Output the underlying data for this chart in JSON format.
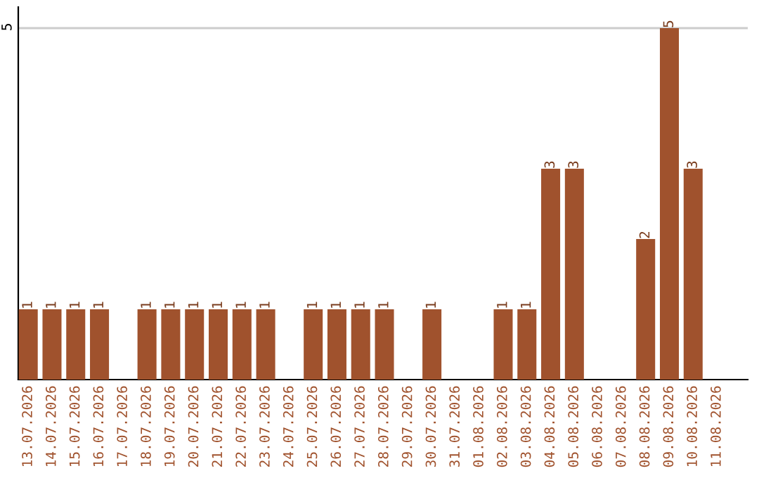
{
  "chart_data": {
    "type": "bar",
    "categories": [
      "13.07.2026",
      "14.07.2026",
      "15.07.2026",
      "16.07.2026",
      "17.07.2026",
      "18.07.2026",
      "19.07.2026",
      "20.07.2026",
      "21.07.2026",
      "22.07.2026",
      "23.07.2026",
      "24.07.2026",
      "25.07.2026",
      "26.07.2026",
      "27.07.2026",
      "28.07.2026",
      "29.07.2026",
      "30.07.2026",
      "31.07.2026",
      "01.08.2026",
      "02.08.2026",
      "03.08.2026",
      "04.08.2026",
      "05.08.2026",
      "06.08.2026",
      "07.08.2026",
      "08.08.2026",
      "09.08.2026",
      "10.08.2026",
      "11.08.2026"
    ],
    "values": [
      1,
      1,
      1,
      1,
      0,
      1,
      1,
      1,
      1,
      1,
      1,
      0,
      1,
      1,
      1,
      1,
      0,
      1,
      0,
      0,
      1,
      1,
      3,
      3,
      0,
      0,
      2,
      5,
      3,
      0
    ],
    "value_labels": [
      "1",
      "1",
      "1",
      "1",
      null,
      "1",
      "1",
      "1",
      "1",
      "1",
      "1",
      null,
      "1",
      "1",
      "1",
      "1",
      null,
      "1",
      null,
      null,
      "1",
      "1",
      "3",
      "3",
      null,
      null,
      "2",
      "5",
      "3",
      null
    ],
    "color": "#a0522d",
    "ylim": [
      0,
      5.3
    ],
    "yticks": [
      5
    ],
    "grid": "y"
  }
}
